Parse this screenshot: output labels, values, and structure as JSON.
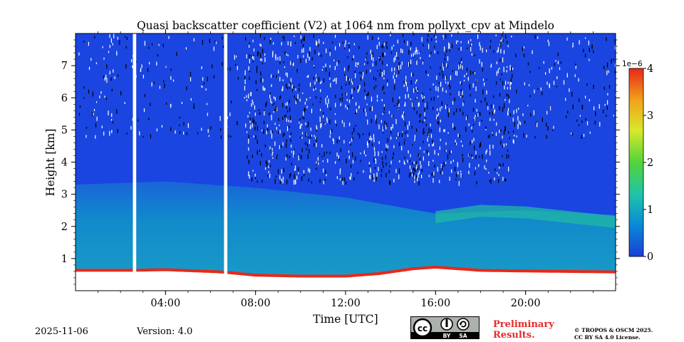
{
  "chart_data": {
    "type": "heatmap",
    "title": "Quasi backscatter coefficient (V2) at 1064 nm from pollyxt_cpv at Mindelo",
    "xlabel": "Time [UTC]",
    "ylabel": "Height [km]",
    "x_range_hours": [
      0,
      24
    ],
    "y_range_km": [
      0,
      8
    ],
    "x_ticks": [
      {
        "value": 4,
        "label": "04:00"
      },
      {
        "value": 8,
        "label": "08:00"
      },
      {
        "value": 12,
        "label": "12:00"
      },
      {
        "value": 16,
        "label": "16:00"
      },
      {
        "value": 20,
        "label": "20:00"
      }
    ],
    "y_ticks": [
      {
        "value": 1,
        "label": "1"
      },
      {
        "value": 2,
        "label": "2"
      },
      {
        "value": 3,
        "label": "3"
      },
      {
        "value": 4,
        "label": "4"
      },
      {
        "value": 5,
        "label": "5"
      },
      {
        "value": 6,
        "label": "6"
      },
      {
        "value": 7,
        "label": "7"
      }
    ],
    "colorbar": {
      "range": [
        0,
        4
      ],
      "scale_label": "1e−6",
      "ticks": [
        {
          "value": 0,
          "label": "0"
        },
        {
          "value": 1,
          "label": "1"
        },
        {
          "value": 2,
          "label": "2"
        },
        {
          "value": 3,
          "label": "3"
        },
        {
          "value": 4,
          "label": "4"
        }
      ],
      "colors": [
        "#1a3fd6",
        "#0a8ad8",
        "#1fc4a8",
        "#52d43c",
        "#d8e82a",
        "#f3a21c",
        "#e82818"
      ]
    },
    "data_gaps_hours": [
      [
        2.55,
        2.7
      ],
      [
        6.6,
        6.75
      ]
    ],
    "ground_layer_top_km": [
      {
        "t": 0,
        "h": 0.6
      },
      {
        "t": 2.5,
        "h": 0.6
      },
      {
        "t": 4,
        "h": 0.62
      },
      {
        "t": 6.5,
        "h": 0.55
      },
      {
        "t": 8,
        "h": 0.45
      },
      {
        "t": 10,
        "h": 0.42
      },
      {
        "t": 12,
        "h": 0.42
      },
      {
        "t": 13.5,
        "h": 0.5
      },
      {
        "t": 15,
        "h": 0.65
      },
      {
        "t": 16,
        "h": 0.7
      },
      {
        "t": 18,
        "h": 0.6
      },
      {
        "t": 20,
        "h": 0.58
      },
      {
        "t": 24,
        "h": 0.55
      }
    ],
    "aerosol_layer_top_km": [
      {
        "t": 0,
        "h": 3.3
      },
      {
        "t": 4,
        "h": 3.4
      },
      {
        "t": 8,
        "h": 3.2
      },
      {
        "t": 12,
        "h": 2.9
      },
      {
        "t": 16,
        "h": 2.4
      },
      {
        "t": 20,
        "h": 2.5
      },
      {
        "t": 24,
        "h": 2.35
      }
    ],
    "elevated_layer_km": [
      {
        "t": 16,
        "h": 2.35
      },
      {
        "t": 18,
        "h": 2.55
      },
      {
        "t": 20,
        "h": 2.5
      },
      {
        "t": 24,
        "h": 2.2
      }
    ],
    "noise_region_hours": [
      7.5,
      19.5
    ],
    "noise_bottom_km": 3.4
  },
  "footer": {
    "date": "2025-11-06",
    "version": "Version: 4.0",
    "license_badge": {
      "cc": "cc",
      "by": "BY",
      "sa": "SA"
    },
    "preliminary": [
      "Preliminary",
      "Results."
    ],
    "copyright": [
      "© TROPOS & OSCM 2025.",
      "CC BY SA 4.0 License."
    ]
  }
}
